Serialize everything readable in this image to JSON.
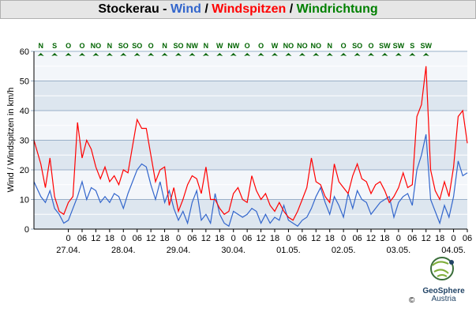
{
  "title": {
    "place": "Stockerau",
    "sep1": " - ",
    "wind": "Wind",
    "sep2": " / ",
    "gust": "Windspitzen",
    "sep3": " / ",
    "direction": "Windrichtung",
    "colors": {
      "place": "#000000",
      "wind": "#3366cc",
      "gust": "#ff0000",
      "direction": "#008000"
    }
  },
  "brand": {
    "name": "GeoSphere",
    "sub": "Austria",
    "copyright": "©"
  },
  "chart_data": {
    "type": "line",
    "ylabel": "Wind / Windspitzen in km/h",
    "ylim": [
      0,
      60
    ],
    "yticks": [
      0,
      10,
      20,
      30,
      40,
      50,
      60
    ],
    "grid": true,
    "x_hour_labels": [
      "0",
      "06",
      "12",
      "18",
      "0",
      "06",
      "12",
      "18",
      "0",
      "06",
      "12",
      "18",
      "0",
      "06",
      "12",
      "18",
      "0",
      "06",
      "12",
      "18",
      "0",
      "06",
      "12",
      "18",
      "0",
      "06",
      "12",
      "18",
      "0",
      "06"
    ],
    "x_date_labels": [
      "27.04.",
      "28.04.",
      "29.04.",
      "30.04.",
      "01.05.",
      "02.05.",
      "03.05.",
      "04.05."
    ],
    "x_range_hours": [
      -15,
      174
    ],
    "direction_labels": [
      "N",
      "S",
      "O",
      "O",
      "NO",
      "N",
      "SO",
      "SO",
      "O",
      "N",
      "SO",
      "NW",
      "N",
      "W",
      "NW",
      "O",
      "O",
      "W",
      "NO",
      "NO",
      "NO",
      "N",
      "O",
      "SO",
      "O",
      "SW",
      "SW",
      "S",
      "SW"
    ],
    "series": [
      {
        "name": "Wind",
        "color": "#3366cc",
        "x": [
          -15,
          -12,
          -10,
          -8,
          -6,
          -4,
          -2,
          0,
          2,
          4,
          6,
          8,
          10,
          12,
          14,
          16,
          18,
          20,
          22,
          24,
          26,
          28,
          30,
          32,
          34,
          36,
          38,
          40,
          42,
          44,
          46,
          48,
          50,
          52,
          54,
          56,
          58,
          60,
          62,
          64,
          66,
          68,
          70,
          72,
          74,
          76,
          78,
          80,
          82,
          84,
          86,
          88,
          90,
          92,
          94,
          96,
          98,
          100,
          102,
          104,
          106,
          108,
          110,
          112,
          114,
          116,
          118,
          120,
          122,
          124,
          126,
          128,
          130,
          132,
          134,
          136,
          138,
          140,
          142,
          144,
          146,
          148,
          150,
          152,
          154,
          156,
          158,
          160,
          162,
          164,
          166,
          168,
          170,
          172,
          174
        ],
        "values": [
          16,
          11,
          9,
          13,
          7,
          5,
          2,
          3,
          7,
          11,
          16,
          10,
          14,
          13,
          9,
          11,
          9,
          12,
          11,
          7,
          12,
          16,
          20,
          22,
          21,
          15,
          10,
          16,
          9,
          13,
          7,
          3,
          6,
          2,
          9,
          13,
          3,
          5,
          2,
          12,
          5,
          2,
          1,
          6,
          5,
          4,
          5,
          7,
          6,
          2,
          5,
          2,
          4,
          3,
          8,
          3,
          2,
          1,
          3,
          4,
          7,
          11,
          14,
          9,
          5,
          11,
          8,
          4,
          12,
          7,
          13,
          10,
          9,
          5,
          7,
          9,
          10,
          11,
          4,
          9,
          11,
          12,
          8,
          20,
          25,
          32,
          10,
          6,
          2,
          8,
          4,
          11,
          23,
          18,
          19
        ]
      },
      {
        "name": "Windspitzen",
        "color": "#ff0000",
        "x": [
          -15,
          -12,
          -10,
          -8,
          -6,
          -4,
          -2,
          0,
          2,
          4,
          6,
          8,
          10,
          12,
          14,
          16,
          18,
          20,
          22,
          24,
          26,
          28,
          30,
          32,
          34,
          36,
          38,
          40,
          42,
          44,
          46,
          48,
          50,
          52,
          54,
          56,
          58,
          60,
          62,
          64,
          66,
          68,
          70,
          72,
          74,
          76,
          78,
          80,
          82,
          84,
          86,
          88,
          90,
          92,
          94,
          96,
          98,
          100,
          102,
          104,
          106,
          108,
          110,
          112,
          114,
          116,
          118,
          120,
          122,
          124,
          126,
          128,
          130,
          132,
          134,
          136,
          138,
          140,
          142,
          144,
          146,
          148,
          150,
          152,
          154,
          156,
          158,
          160,
          162,
          164,
          166,
          168,
          170,
          172,
          174
        ],
        "values": [
          30,
          22,
          14,
          24,
          11,
          6,
          5,
          9,
          11,
          36,
          24,
          30,
          27,
          21,
          17,
          21,
          16,
          18,
          15,
          20,
          19,
          28,
          37,
          34,
          34,
          25,
          16,
          20,
          21,
          8,
          14,
          6,
          10,
          15,
          18,
          17,
          12,
          21,
          10,
          10,
          7,
          5,
          6,
          12,
          14,
          10,
          9,
          18,
          13,
          10,
          12,
          8,
          6,
          9,
          6,
          4,
          3,
          6,
          10,
          14,
          24,
          16,
          15,
          11,
          9,
          22,
          16,
          14,
          12,
          18,
          22,
          17,
          16,
          12,
          15,
          16,
          13,
          9,
          11,
          14,
          19,
          14,
          15,
          38,
          42,
          55,
          20,
          13,
          10,
          16,
          11,
          21,
          38,
          40,
          29
        ]
      }
    ]
  }
}
